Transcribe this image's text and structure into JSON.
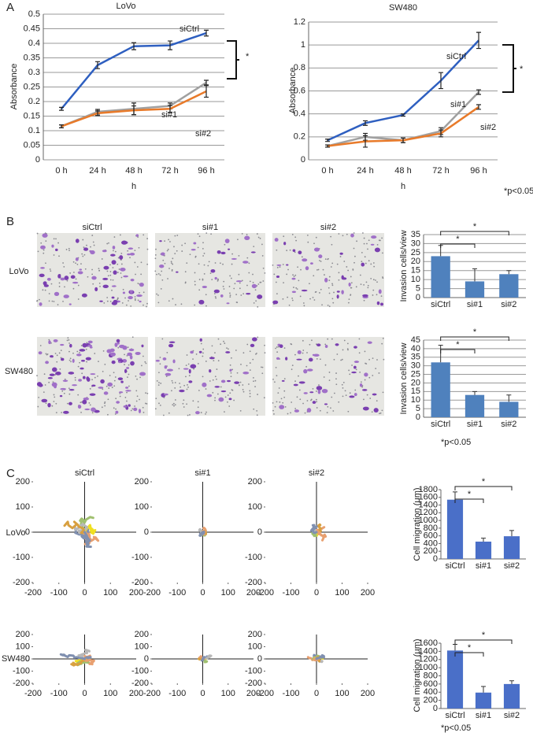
{
  "figure": {
    "panel_labels": [
      "A",
      "B",
      "C"
    ],
    "image_columns": [
      "siCtrl",
      "si#1",
      "si#2"
    ],
    "image_rows": [
      "LoVo",
      "SW480"
    ],
    "migration_rows": [
      "LoVo",
      "SW480"
    ],
    "footnotes": [
      "*p<0.05",
      "*p<0.05",
      "*p<0.05"
    ]
  },
  "chart_data": [
    {
      "type": "line",
      "title": "LoVo",
      "x_label": "h",
      "y_label": "Absorbance",
      "categories": [
        "0 h",
        "24 h",
        "48 h",
        "72 h",
        "96 h"
      ],
      "ylim": [
        0,
        0.5
      ],
      "yticks": [
        0,
        0.05,
        0.1,
        0.15,
        0.2,
        0.25,
        0.3,
        0.35,
        0.4,
        0.45,
        0.5
      ],
      "grid": true,
      "annotation": "*",
      "series": [
        {
          "name": "siCtrl",
          "color": "#2e5fc0",
          "values": [
            0.175,
            0.325,
            0.39,
            0.393,
            0.435
          ],
          "errors": [
            0.005,
            0.012,
            0.012,
            0.015,
            0.01
          ]
        },
        {
          "name": "si#1",
          "color": "#a0a0a0",
          "values": [
            0.115,
            0.165,
            0.175,
            0.185,
            0.265
          ],
          "errors": [
            0.005,
            0.008,
            0.02,
            0.01,
            0.008
          ]
        },
        {
          "name": "si#2",
          "color": "#e87a2a",
          "values": [
            0.115,
            0.16,
            0.17,
            0.175,
            0.235
          ],
          "errors": [
            0.005,
            0.008,
            0.015,
            0.012,
            0.02
          ]
        }
      ]
    },
    {
      "type": "line",
      "title": "SW480",
      "x_label": "h",
      "y_label": "Absorbance",
      "categories": [
        "0 h",
        "24 h",
        "48 h",
        "72 h",
        "96 h"
      ],
      "ylim": [
        0,
        1.2
      ],
      "yticks": [
        0,
        0.2,
        0.4,
        0.6,
        0.8,
        1,
        1.2
      ],
      "grid": true,
      "annotation": "*",
      "series": [
        {
          "name": "siCtrl",
          "color": "#2e5fc0",
          "values": [
            0.17,
            0.32,
            0.39,
            0.69,
            1.04
          ],
          "errors": [
            0.01,
            0.02,
            0.01,
            0.07,
            0.07
          ]
        },
        {
          "name": "si#1",
          "color": "#a0a0a0",
          "values": [
            0.12,
            0.2,
            0.17,
            0.25,
            0.59
          ],
          "errors": [
            0.01,
            0.03,
            0.02,
            0.03,
            0.02
          ]
        },
        {
          "name": "si#2",
          "color": "#e87a2a",
          "values": [
            0.12,
            0.16,
            0.17,
            0.23,
            0.46
          ],
          "errors": [
            0.01,
            0.05,
            0.02,
            0.03,
            0.02
          ]
        }
      ]
    },
    {
      "type": "bar",
      "y_label": "Invasion cells/view",
      "categories": [
        "siCtrl",
        "si#1",
        "si#2"
      ],
      "values": [
        23,
        9,
        13
      ],
      "errors": [
        6,
        7,
        2
      ],
      "color": "#4f81bd",
      "ylim": [
        0,
        35
      ],
      "yticks": [
        0,
        5,
        10,
        15,
        20,
        25,
        30,
        35
      ],
      "grid": true,
      "significance": [
        "*",
        "*"
      ]
    },
    {
      "type": "bar",
      "y_label": "Invasion cells/view",
      "categories": [
        "siCtrl",
        "si#1",
        "si#2"
      ],
      "values": [
        32,
        13,
        9
      ],
      "errors": [
        10,
        2,
        4
      ],
      "color": "#4f81bd",
      "ylim": [
        0,
        45
      ],
      "yticks": [
        0,
        5,
        10,
        15,
        20,
        25,
        30,
        35,
        40,
        45
      ],
      "grid": true,
      "significance": [
        "*",
        "*"
      ]
    },
    {
      "type": "trajectory",
      "title": "siCtrl",
      "xlim": [
        -200,
        200
      ],
      "ylim": [
        -200,
        200
      ],
      "xticks": [
        -200,
        -100,
        0,
        100,
        200
      ],
      "yticks": [
        -200,
        -100,
        0,
        100,
        200
      ]
    },
    {
      "type": "trajectory",
      "title": "si#1",
      "xlim": [
        -200,
        200
      ],
      "ylim": [
        -200,
        200
      ],
      "xticks": [
        -200,
        -100,
        0,
        100,
        200
      ],
      "yticks": [
        -200,
        -100,
        0,
        100,
        200
      ]
    },
    {
      "type": "trajectory",
      "title": "si#2",
      "xlim": [
        -200,
        200
      ],
      "ylim": [
        -200,
        200
      ],
      "xticks": [
        -200,
        -100,
        0,
        100,
        200
      ],
      "yticks": [
        -200,
        -100,
        0,
        100,
        200
      ]
    },
    {
      "type": "trajectory",
      "xlim": [
        -200,
        200
      ],
      "ylim": [
        -200,
        200
      ],
      "xticks": [
        -200,
        -100,
        0,
        100,
        200
      ],
      "yticks": [
        -200,
        -100,
        0,
        100,
        200
      ]
    },
    {
      "type": "trajectory",
      "xlim": [
        -200,
        200
      ],
      "ylim": [
        -200,
        200
      ],
      "xticks": [
        -200,
        -100,
        0,
        100,
        200
      ],
      "yticks": [
        -200,
        -100,
        0,
        100,
        200
      ]
    },
    {
      "type": "trajectory",
      "xlim": [
        -200,
        200
      ],
      "ylim": [
        -200,
        200
      ],
      "xticks": [
        -200,
        -100,
        0,
        100,
        200
      ],
      "yticks": [
        -200,
        -100,
        0,
        100,
        200
      ]
    },
    {
      "type": "bar",
      "y_label": "Cell migration (μm)",
      "categories": [
        "siCtrl",
        "si#1",
        "si#2"
      ],
      "values": [
        1540,
        450,
        590
      ],
      "errors": [
        200,
        90,
        150
      ],
      "color": "#4a6fc8",
      "ylim": [
        0,
        1800
      ],
      "yticks": [
        0,
        200,
        400,
        600,
        800,
        1000,
        1200,
        1400,
        1600,
        1800
      ],
      "grid": false,
      "significance": [
        "*",
        "*"
      ]
    },
    {
      "type": "bar",
      "y_label": "Cell migration (μm)",
      "categories": [
        "siCtrl",
        "si#1",
        "si#2"
      ],
      "values": [
        1420,
        390,
        600
      ],
      "errors": [
        150,
        150,
        80
      ],
      "color": "#4a6fc8",
      "ylim": [
        0,
        1600
      ],
      "yticks": [
        0,
        200,
        400,
        600,
        800,
        1000,
        1200,
        1400,
        1600
      ],
      "grid": false,
      "significance": [
        "*",
        "*"
      ]
    }
  ]
}
